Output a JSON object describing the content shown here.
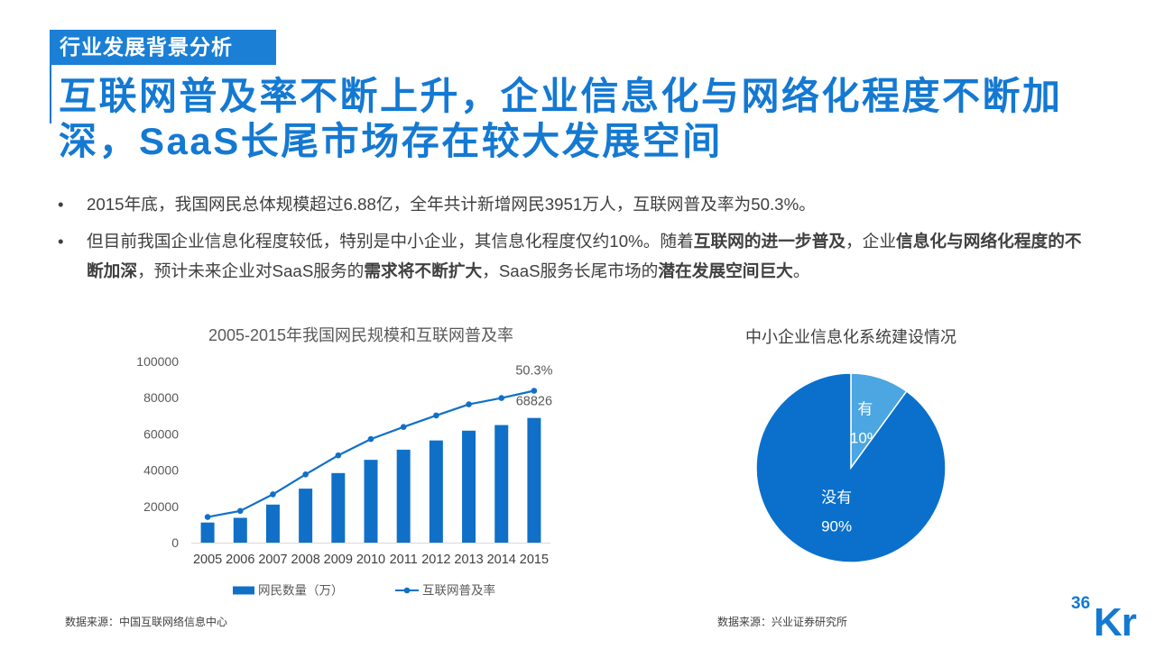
{
  "theme": {
    "accent": "#1479D2",
    "tag_background": "#1A7FD5",
    "text": "#404040",
    "muted_text": "#595959",
    "axis": "#D9D9D9"
  },
  "header": {
    "section_tag": "行业发展背景分析",
    "title_lines": [
      "互联网普及率不断上升，企业信息化与网络化程度不断加",
      "深，SaaS长尾市场存在较大发展空间"
    ]
  },
  "bullet_marker": "•",
  "bullets": [
    {
      "lines": [
        [
          {
            "text": "2015年底，我国网民总体规模超过6.88亿，全年共计新增网民3951万人，互联网普及率为50.3%。",
            "bold": false
          }
        ]
      ]
    },
    {
      "lines": [
        [
          {
            "text": "但目前我国企业信息化程度较低，特别是中小企业，其信息化程度仅约10%。随着",
            "bold": false
          },
          {
            "text": "互联网的进一步普及",
            "bold": true
          },
          {
            "text": "，企业",
            "bold": false
          },
          {
            "text": "信息化与网络化程度的不",
            "bold": true
          }
        ],
        [
          {
            "text": "断加深",
            "bold": true
          },
          {
            "text": "，预计未来企业对SaaS服务的",
            "bold": false
          },
          {
            "text": "需求将不断扩大",
            "bold": true
          },
          {
            "text": "，SaaS服务长尾市场的",
            "bold": false
          },
          {
            "text": "潜在发展空间巨大",
            "bold": true
          },
          {
            "text": "。",
            "bold": false
          }
        ]
      ]
    }
  ],
  "chart_data": [
    {
      "type": "bar",
      "title": "2005-2015年我国网民规模和互联网普及率",
      "categories": [
        "2005",
        "2006",
        "2007",
        "2008",
        "2009",
        "2010",
        "2011",
        "2012",
        "2013",
        "2014",
        "2015"
      ],
      "series": [
        {
          "name": "网民数量（万）",
          "type": "bar",
          "secondary_axis": false,
          "color": "#1070C8",
          "values": [
            11100,
            13700,
            21000,
            29800,
            38400,
            45700,
            51300,
            56400,
            61800,
            64900,
            68826
          ]
        },
        {
          "name": "互联网普及率",
          "type": "line",
          "secondary_axis": true,
          "color": "#1070C8",
          "values": [
            8.5,
            10.5,
            16.0,
            22.6,
            28.9,
            34.3,
            38.3,
            42.1,
            45.8,
            47.9,
            50.3
          ]
        }
      ],
      "ylim": [
        0,
        100000
      ],
      "yticks": [
        0,
        20000,
        40000,
        60000,
        80000,
        100000
      ],
      "y2lim": [
        0,
        60
      ],
      "y2_axis_shown": false,
      "xlabel": "",
      "ylabel": "",
      "grid": false,
      "legend": "bottom",
      "data_labels": [
        {
          "series": 1,
          "index": 10,
          "text": "50.3%"
        },
        {
          "series": 0,
          "index": 10,
          "text": "68826"
        }
      ]
    },
    {
      "type": "pie",
      "title": "中小企业信息化系统建设情况",
      "slices": [
        {
          "label": "有",
          "value": 10,
          "value_label": "10%",
          "color": "#4BA6E1"
        },
        {
          "label": "没有",
          "value": 90,
          "value_label": "90%",
          "color": "#0A70CC"
        }
      ]
    }
  ],
  "footer": {
    "sources": [
      "数据来源：中国互联网络信息中心",
      "数据来源：兴业证券研究所"
    ]
  },
  "logo": {
    "small": "36",
    "large": "Kr"
  }
}
